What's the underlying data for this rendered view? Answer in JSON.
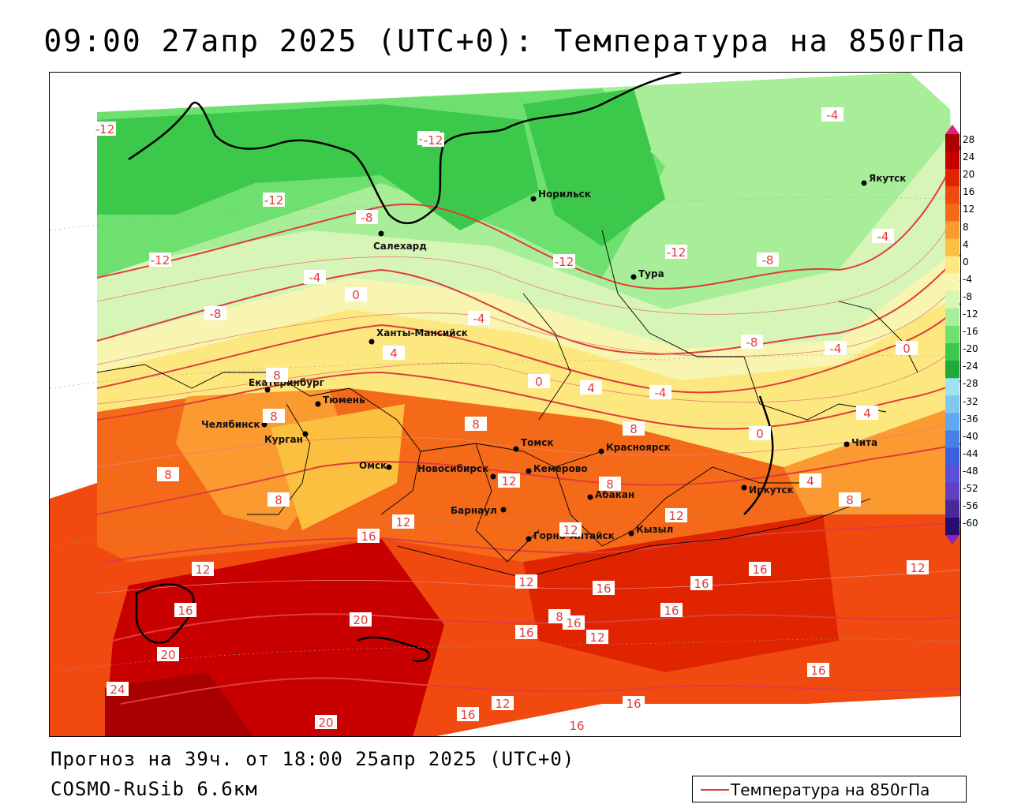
{
  "title": "09:00 27апр 2025 (UTC+0): Температура на 850гПа",
  "forecast_info": "Прогноз на 39ч. от 18:00 25апр 2025 (UTC+0)",
  "model_name": "COSMO-RuSib 6.6км",
  "legend": {
    "label": "Температура на 850гПа",
    "line_color": "#e03c3c"
  },
  "colorbar": {
    "labels": [
      "28",
      "24",
      "20",
      "16",
      "12",
      "8",
      "4",
      "0",
      "-4",
      "-8",
      "-12",
      "-16",
      "-20",
      "-24",
      "-28",
      "-32",
      "-36",
      "-40",
      "-44",
      "-48",
      "-52",
      "-56",
      "-60"
    ],
    "colors": [
      "#a80000",
      "#c80000",
      "#e02400",
      "#f04a10",
      "#f56a18",
      "#fa9a30",
      "#fcc040",
      "#fde880",
      "#f7f5b0",
      "#d8f5b8",
      "#a8ee98",
      "#6ee070",
      "#3cc84a",
      "#20a838",
      "#a0e0f0",
      "#80c8f0",
      "#60a8f0",
      "#4880e8",
      "#3a60e0",
      "#5a50d8",
      "#6040c0",
      "#4a2898",
      "#280c70"
    ]
  },
  "cities": [
    {
      "name": "Норильск"
    },
    {
      "name": "Якутск"
    },
    {
      "name": "Салехард"
    },
    {
      "name": "Тура"
    },
    {
      "name": "Ханты-Мансийск"
    },
    {
      "name": "Екатеринбург"
    },
    {
      "name": "Тюмень"
    },
    {
      "name": "Челябинск"
    },
    {
      "name": "Курган"
    },
    {
      "name": "Омск"
    },
    {
      "name": "Новосибирск"
    },
    {
      "name": "Томск"
    },
    {
      "name": "Кемерово"
    },
    {
      "name": "Красноярск"
    },
    {
      "name": "Барнаул"
    },
    {
      "name": "Абакан"
    },
    {
      "name": "Горно-Алтайск"
    },
    {
      "name": "Кызыл"
    },
    {
      "name": "Иркутск"
    },
    {
      "name": "Чита"
    }
  ],
  "isotherm_labels": [
    "-12",
    "-12",
    "-12",
    "-12",
    "-8",
    "-4",
    "-12",
    "-12",
    "-8",
    "-4",
    "-4",
    "-8",
    "0",
    "-4",
    "-8",
    "-12",
    "-4",
    "4",
    "0",
    "4",
    "-4",
    "0",
    "4",
    "0",
    "8",
    "8",
    "8",
    "8",
    "8",
    "8",
    "12",
    "16",
    "12",
    "16",
    "20",
    "12",
    "16",
    "12",
    "16",
    "16",
    "16",
    "16",
    "12",
    "20",
    "24",
    "12",
    "16",
    "20",
    "16",
    "16",
    "12",
    "16",
    "4",
    "8",
    "8",
    "12",
    "12",
    "12",
    "8",
    "16"
  ]
}
